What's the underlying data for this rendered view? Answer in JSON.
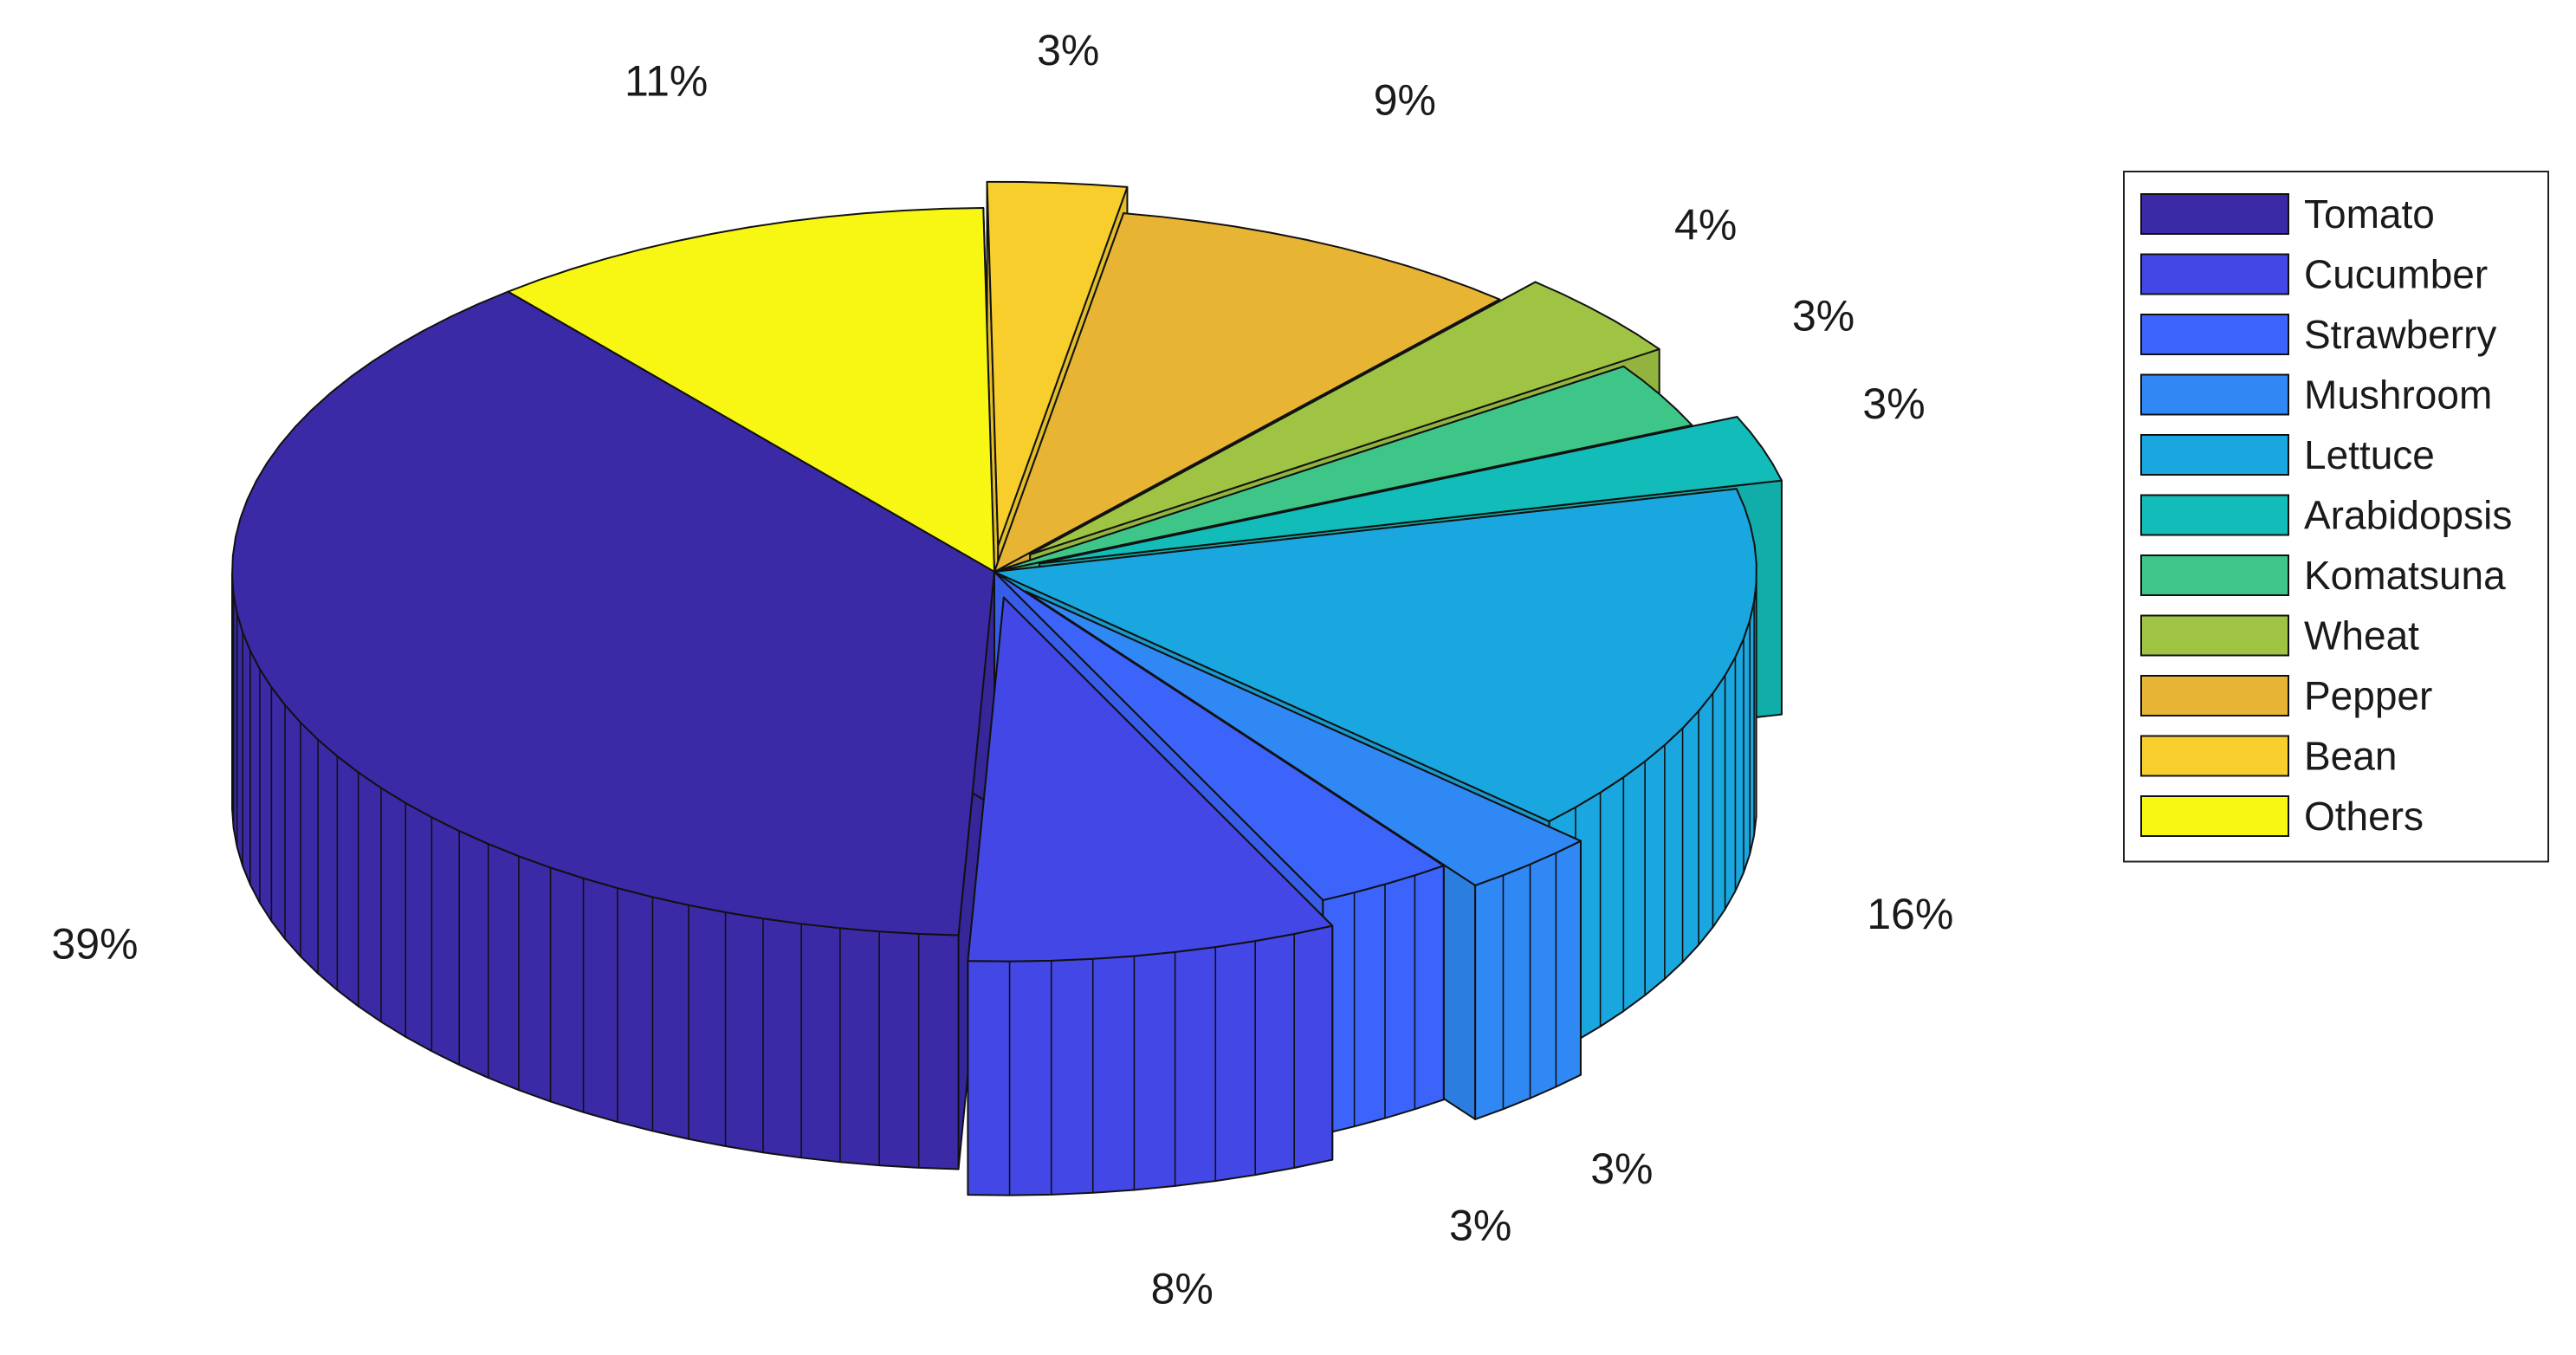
{
  "chart_data": {
    "type": "pie",
    "title": "",
    "slices": [
      {
        "name": "Tomato",
        "value": 39,
        "label": "39%",
        "color": "#3a2aa6",
        "explode": false
      },
      {
        "name": "Cucumber",
        "value": 8,
        "label": "8%",
        "color": "#4347e5",
        "explode": true
      },
      {
        "name": "Strawberry",
        "value": 3,
        "label": "3%",
        "color": "#3c64fb",
        "explode": false
      },
      {
        "name": "Mushroom",
        "value": 3,
        "label": "3%",
        "color": "#2f88f4",
        "explode": true
      },
      {
        "name": "Lettuce",
        "value": 16,
        "label": "16%",
        "color": "#1aa7df",
        "explode": false
      },
      {
        "name": "Arabidopsis",
        "value": 3,
        "label": "3%",
        "color": "#12bcb8",
        "explode": true
      },
      {
        "name": "Komatsuna",
        "value": 3,
        "label": "3%",
        "color": "#3ec689",
        "explode": false
      },
      {
        "name": "Wheat",
        "value": 4,
        "label": "4%",
        "color": "#9fc444",
        "explode": true
      },
      {
        "name": "Pepper",
        "value": 9,
        "label": "9%",
        "color": "#e7b434",
        "explode": false
      },
      {
        "name": "Bean",
        "value": 3,
        "label": "3%",
        "color": "#f7ce2b",
        "explode": true
      },
      {
        "name": "Others",
        "value": 11,
        "label": "11%",
        "color": "#f8f714",
        "explode": false
      }
    ],
    "legend_position": "right"
  }
}
